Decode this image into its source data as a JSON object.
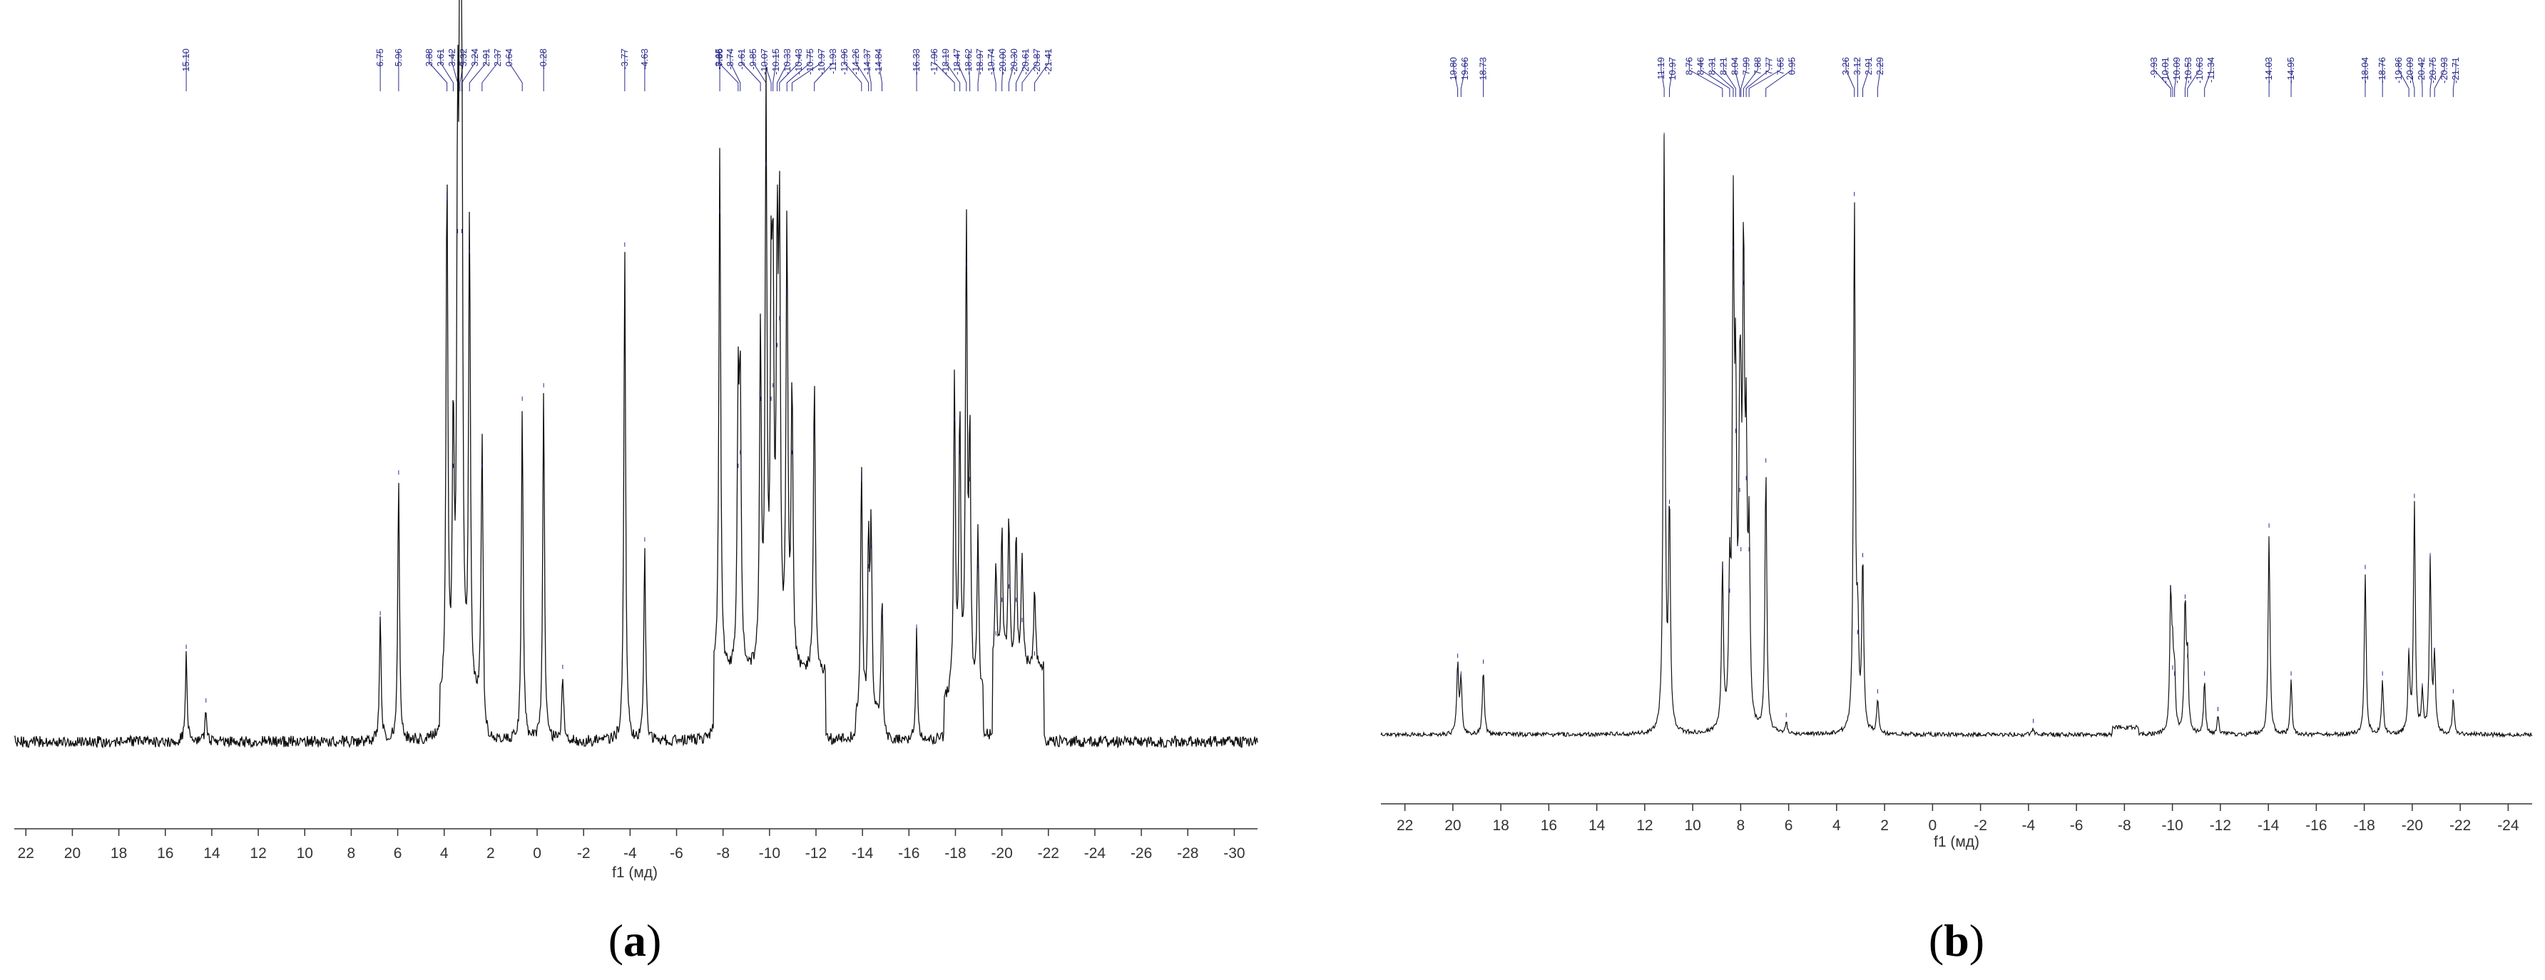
{
  "figure": {
    "captions": {
      "a": "a",
      "b": "b"
    }
  },
  "colors": {
    "spectrum": "#111111",
    "peak_labels": "#2a2a8c",
    "axis": "#333333"
  },
  "chart_data": [
    {
      "id": "a",
      "type": "line",
      "title": "",
      "xlabel": "f1 (мд)",
      "ylabel": "",
      "x_reversed": true,
      "xlim": [
        22.5,
        -31
      ],
      "ylim": [
        0,
        1
      ],
      "x_ticks": [
        22,
        20,
        18,
        16,
        14,
        12,
        10,
        8,
        6,
        4,
        2,
        0,
        -2,
        -4,
        -6,
        -8,
        -10,
        -12,
        -14,
        -16,
        -18,
        -20,
        -22,
        -24,
        -26,
        -28,
        -30
      ],
      "x_tick_labels": [
        "22",
        "20",
        "18",
        "16",
        "14",
        "12",
        "10",
        "8",
        "6",
        "4",
        "2",
        "0",
        "-2",
        "-4",
        "-6",
        "-8",
        "-10",
        "-12",
        "-14",
        "-16",
        "-18",
        "-20",
        "-22",
        "-24",
        "-26",
        "-28",
        "-30"
      ],
      "baseline_regions": [
        [
          4.2,
          2.3,
          0.05
        ],
        [
          -7.6,
          -12.4,
          0.1
        ],
        [
          -13.7,
          -14.9,
          0.03
        ],
        [
          -17.5,
          -19.2,
          0.06
        ],
        [
          -19.6,
          -21.8,
          0.11
        ]
      ],
      "peaks": [
        {
          "x": 15.1,
          "y": 0.13
        },
        {
          "x": 14.25,
          "y": 0.05
        },
        {
          "x": 6.75,
          "y": 0.18
        },
        {
          "x": 5.96,
          "y": 0.39
        },
        {
          "x": 3.88,
          "y": 0.8
        },
        {
          "x": 3.61,
          "y": 0.4
        },
        {
          "x": 3.42,
          "y": 0.75
        },
        {
          "x": 3.32,
          "y": 1.0
        },
        {
          "x": 3.24,
          "y": 0.75
        },
        {
          "x": 2.91,
          "y": 0.72
        },
        {
          "x": 2.37,
          "y": 0.4
        },
        {
          "x": 0.64,
          "y": 0.5
        },
        {
          "x": -0.28,
          "y": 0.52
        },
        {
          "x": -1.1,
          "y": 0.1
        },
        {
          "x": -3.77,
          "y": 0.73
        },
        {
          "x": -4.63,
          "y": 0.29
        },
        {
          "x": -7.86,
          "y": 0.78
        },
        {
          "x": -8.65,
          "y": 0.4
        },
        {
          "x": -8.74,
          "y": 0.42
        },
        {
          "x": -9.61,
          "y": 0.5
        },
        {
          "x": -9.85,
          "y": 0.85
        },
        {
          "x": -10.07,
          "y": 0.5
        },
        {
          "x": -10.15,
          "y": 0.52
        },
        {
          "x": -10.33,
          "y": 0.58
        },
        {
          "x": -10.43,
          "y": 0.62
        },
        {
          "x": -10.75,
          "y": 0.66
        },
        {
          "x": -10.97,
          "y": 0.42
        },
        {
          "x": -11.93,
          "y": 0.45
        },
        {
          "x": -13.96,
          "y": 0.38
        },
        {
          "x": -14.26,
          "y": 0.25
        },
        {
          "x": -14.37,
          "y": 0.28
        },
        {
          "x": -14.84,
          "y": 0.18
        },
        {
          "x": -16.33,
          "y": 0.16
        },
        {
          "x": -17.96,
          "y": 0.47
        },
        {
          "x": -18.19,
          "y": 0.42
        },
        {
          "x": -18.47,
          "y": 0.7
        },
        {
          "x": -18.62,
          "y": 0.38
        },
        {
          "x": -18.97,
          "y": 0.25
        },
        {
          "x": -19.74,
          "y": 0.15
        },
        {
          "x": -20.0,
          "y": 0.2
        },
        {
          "x": -20.3,
          "y": 0.22
        },
        {
          "x": -20.61,
          "y": 0.2
        },
        {
          "x": -20.87,
          "y": 0.17
        },
        {
          "x": -21.41,
          "y": 0.12
        }
      ],
      "peak_labels": [
        "15.10",
        "6.75",
        "5.96",
        "3.88",
        "3.61",
        "3.42",
        "3.32",
        "3.24",
        "2.91",
        "2.37",
        "0.64",
        "-0.28",
        "-3.77",
        "-4.63",
        "-7.86",
        "-8.65",
        "-8.74",
        "-9.61",
        "-9.85",
        "-10.07",
        "-10.15",
        "-10.33",
        "-10.43",
        "-10.75",
        "-10.97",
        "-11.93",
        "-13.96",
        "-14.26",
        "-14.37",
        "-14.84",
        "-16.33",
        "-17.96",
        "-18.19",
        "-18.47",
        "-18.62",
        "-18.97",
        "-19.74",
        "-20.00",
        "-20.30",
        "-20.61",
        "-20.87",
        "-21.41"
      ]
    },
    {
      "id": "b",
      "type": "line",
      "title": "",
      "xlabel": "f1 (мд)",
      "ylabel": "",
      "x_reversed": true,
      "xlim": [
        23,
        -25
      ],
      "ylim": [
        0,
        1
      ],
      "x_ticks": [
        22,
        20,
        18,
        16,
        14,
        12,
        10,
        8,
        6,
        4,
        2,
        0,
        -2,
        -4,
        -6,
        -8,
        -10,
        -12,
        -14,
        -16,
        -18,
        -20,
        -22,
        -24
      ],
      "x_tick_labels": [
        "22",
        "20",
        "18",
        "16",
        "14",
        "12",
        "10",
        "8",
        "6",
        "4",
        "2",
        "0",
        "-2",
        "-4",
        "-6",
        "-8",
        "-10",
        "-12",
        "-14",
        "-16",
        "-18",
        "-20",
        "-22",
        "-24"
      ],
      "baseline_regions": [
        [
          -7.5,
          -8.6,
          0.012
        ]
      ],
      "peaks": [
        {
          "x": 19.8,
          "y": 0.12
        },
        {
          "x": 19.66,
          "y": 0.09
        },
        {
          "x": 18.73,
          "y": 0.11
        },
        {
          "x": 11.19,
          "y": 1.0
        },
        {
          "x": 10.97,
          "y": 0.38
        },
        {
          "x": 8.76,
          "y": 0.27
        },
        {
          "x": 8.46,
          "y": 0.23
        },
        {
          "x": 8.31,
          "y": 0.81
        },
        {
          "x": 8.21,
          "y": 0.5
        },
        {
          "x": 8.04,
          "y": 0.4
        },
        {
          "x": 7.99,
          "y": 0.3
        },
        {
          "x": 7.88,
          "y": 0.75
        },
        {
          "x": 7.77,
          "y": 0.42
        },
        {
          "x": 7.65,
          "y": 0.3
        },
        {
          "x": 6.95,
          "y": 0.45
        },
        {
          "x": 6.1,
          "y": 0.02
        },
        {
          "x": 3.26,
          "y": 0.9
        },
        {
          "x": 3.12,
          "y": 0.16
        },
        {
          "x": 2.91,
          "y": 0.29
        },
        {
          "x": 2.29,
          "y": 0.06
        },
        {
          "x": -4.2,
          "y": 0.01
        },
        {
          "x": -9.93,
          "y": 0.23
        },
        {
          "x": -10.01,
          "y": 0.1
        },
        {
          "x": -10.09,
          "y": 0.09
        },
        {
          "x": -10.53,
          "y": 0.22
        },
        {
          "x": -10.63,
          "y": 0.12
        },
        {
          "x": -11.34,
          "y": 0.09
        },
        {
          "x": -11.9,
          "y": 0.03
        },
        {
          "x": -14.03,
          "y": 0.34
        },
        {
          "x": -14.95,
          "y": 0.09
        },
        {
          "x": -18.04,
          "y": 0.27
        },
        {
          "x": -18.76,
          "y": 0.09
        },
        {
          "x": -19.86,
          "y": 0.13
        },
        {
          "x": -20.09,
          "y": 0.39
        },
        {
          "x": -20.42,
          "y": 0.07
        },
        {
          "x": -20.75,
          "y": 0.29
        },
        {
          "x": -20.93,
          "y": 0.13
        },
        {
          "x": -21.71,
          "y": 0.06
        }
      ],
      "peak_labels": [
        "19.80",
        "19.66",
        "18.73",
        "11.19",
        "10.97",
        "8.76",
        "8.46",
        "8.31",
        "8.21",
        "8.04",
        "7.99",
        "7.88",
        "7.77",
        "7.65",
        "6.95",
        "3.26",
        "3.12",
        "2.91",
        "2.29",
        "-9.93",
        "-10.01",
        "-10.09",
        "-10.53",
        "-10.63",
        "-11.34",
        "-14.03",
        "-14.95",
        "-18.04",
        "-18.76",
        "-19.86",
        "-20.09",
        "-20.42",
        "-20.75",
        "-20.93",
        "-21.71"
      ]
    }
  ]
}
